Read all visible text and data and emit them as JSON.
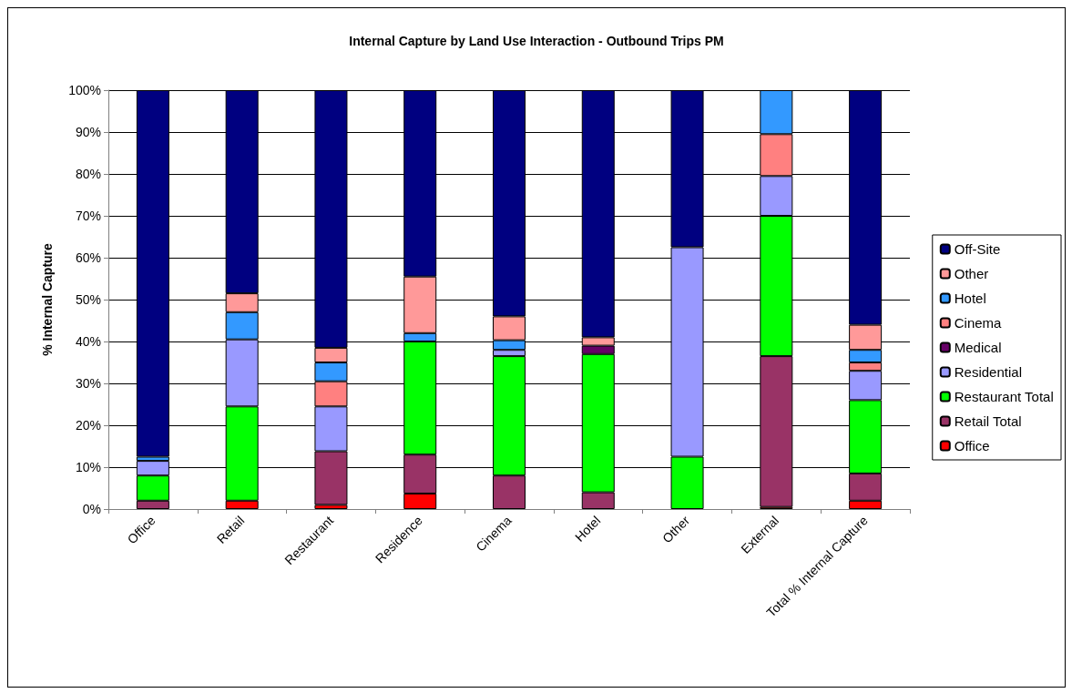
{
  "chart_data": {
    "type": "bar",
    "stacked": true,
    "title": "Internal Capture by Land Use Interaction - Outbound Trips PM",
    "ylabel": "% Internal Capture",
    "categories": [
      "Office",
      "Retail",
      "Restaurant",
      "Residence",
      "Cinema",
      "Hotel",
      "Other",
      "External",
      "Total % Internal Capture"
    ],
    "series": [
      {
        "name": "Office",
        "color": "#ff0000",
        "values": [
          0,
          2,
          1,
          3.7,
          0,
          0,
          0,
          0.5,
          2
        ]
      },
      {
        "name": "Retail Total",
        "color": "#993366",
        "values": [
          2,
          0,
          12.8,
          9.3,
          8,
          4,
          0,
          36,
          6.5
        ]
      },
      {
        "name": "Restaurant Total",
        "color": "#00ff00",
        "values": [
          6,
          22.5,
          0,
          27,
          28.5,
          33,
          12.5,
          33.5,
          17.5
        ]
      },
      {
        "name": "Residential",
        "color": "#9999ff",
        "values": [
          3.5,
          16,
          10.7,
          0,
          1.5,
          0,
          50,
          9.5,
          7
        ]
      },
      {
        "name": "Medical",
        "color": "#660066",
        "values": [
          0,
          0,
          0,
          0,
          0,
          2,
          0,
          0,
          0
        ]
      },
      {
        "name": "Cinema",
        "color": "#ff8080",
        "values": [
          0,
          0,
          6,
          0,
          0,
          0,
          0,
          10,
          2
        ]
      },
      {
        "name": "Hotel",
        "color": "#3399ff",
        "values": [
          1,
          6.5,
          4.5,
          2,
          2.3,
          0,
          0,
          10.5,
          3
        ]
      },
      {
        "name": "Other",
        "color": "#ff9999",
        "values": [
          0,
          4.5,
          3.5,
          13.5,
          5.7,
          2,
          0,
          0,
          6
        ]
      },
      {
        "name": "Off-Site",
        "color": "#000080",
        "values": [
          87.5,
          48.5,
          61.5,
          44.5,
          54,
          59,
          37.5,
          0,
          56
        ]
      }
    ],
    "ylim": [
      0,
      100
    ],
    "yticks": [
      {
        "value": 0,
        "label": "0%"
      },
      {
        "value": 10,
        "label": "10%"
      },
      {
        "value": 20,
        "label": "20%"
      },
      {
        "value": 30,
        "label": "30%"
      },
      {
        "value": 40,
        "label": "40%"
      },
      {
        "value": 50,
        "label": "50%"
      },
      {
        "value": 60,
        "label": "60%"
      },
      {
        "value": 70,
        "label": "70%"
      },
      {
        "value": 80,
        "label": "80%"
      },
      {
        "value": 90,
        "label": "90%"
      },
      {
        "value": 100,
        "label": "100%"
      }
    ],
    "grid": "y",
    "legend": "right"
  }
}
